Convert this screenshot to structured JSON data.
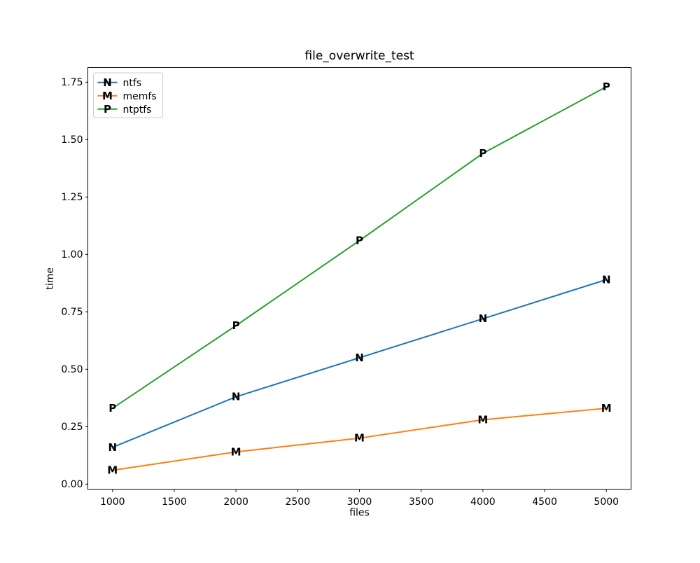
{
  "chart_data": {
    "type": "line",
    "title": "file_overwrite_test",
    "xlabel": "files",
    "ylabel": "time",
    "x": [
      1000,
      2000,
      3000,
      4000,
      5000
    ],
    "series": [
      {
        "name": "ntfs",
        "color": "#1f77b4",
        "marker": "N",
        "values": [
          0.16,
          0.38,
          0.55,
          0.72,
          0.89
        ]
      },
      {
        "name": "memfs",
        "color": "#ff7f0e",
        "marker": "M",
        "values": [
          0.06,
          0.14,
          0.2,
          0.28,
          0.33
        ]
      },
      {
        "name": "ntptfs",
        "color": "#2ca02c",
        "marker": "P",
        "values": [
          0.33,
          0.69,
          1.06,
          1.44,
          1.73
        ]
      }
    ],
    "xticks": [
      1000,
      1500,
      2000,
      2500,
      3000,
      3500,
      4000,
      4500,
      5000
    ],
    "ytick_labels": [
      "0.00",
      "0.25",
      "0.50",
      "0.75",
      "1.00",
      "1.25",
      "1.50",
      "1.75"
    ],
    "xlim": [
      800,
      5200
    ],
    "ylim": [
      -0.0235,
      1.8135
    ],
    "grid": false,
    "legend": {
      "position": "upper left",
      "entries": [
        "ntfs",
        "memfs",
        "ntptfs"
      ]
    },
    "background_color": "#ffffff",
    "text_color": "#000000",
    "spine_color": "#000000",
    "legend_border_color": "#cccccc"
  }
}
